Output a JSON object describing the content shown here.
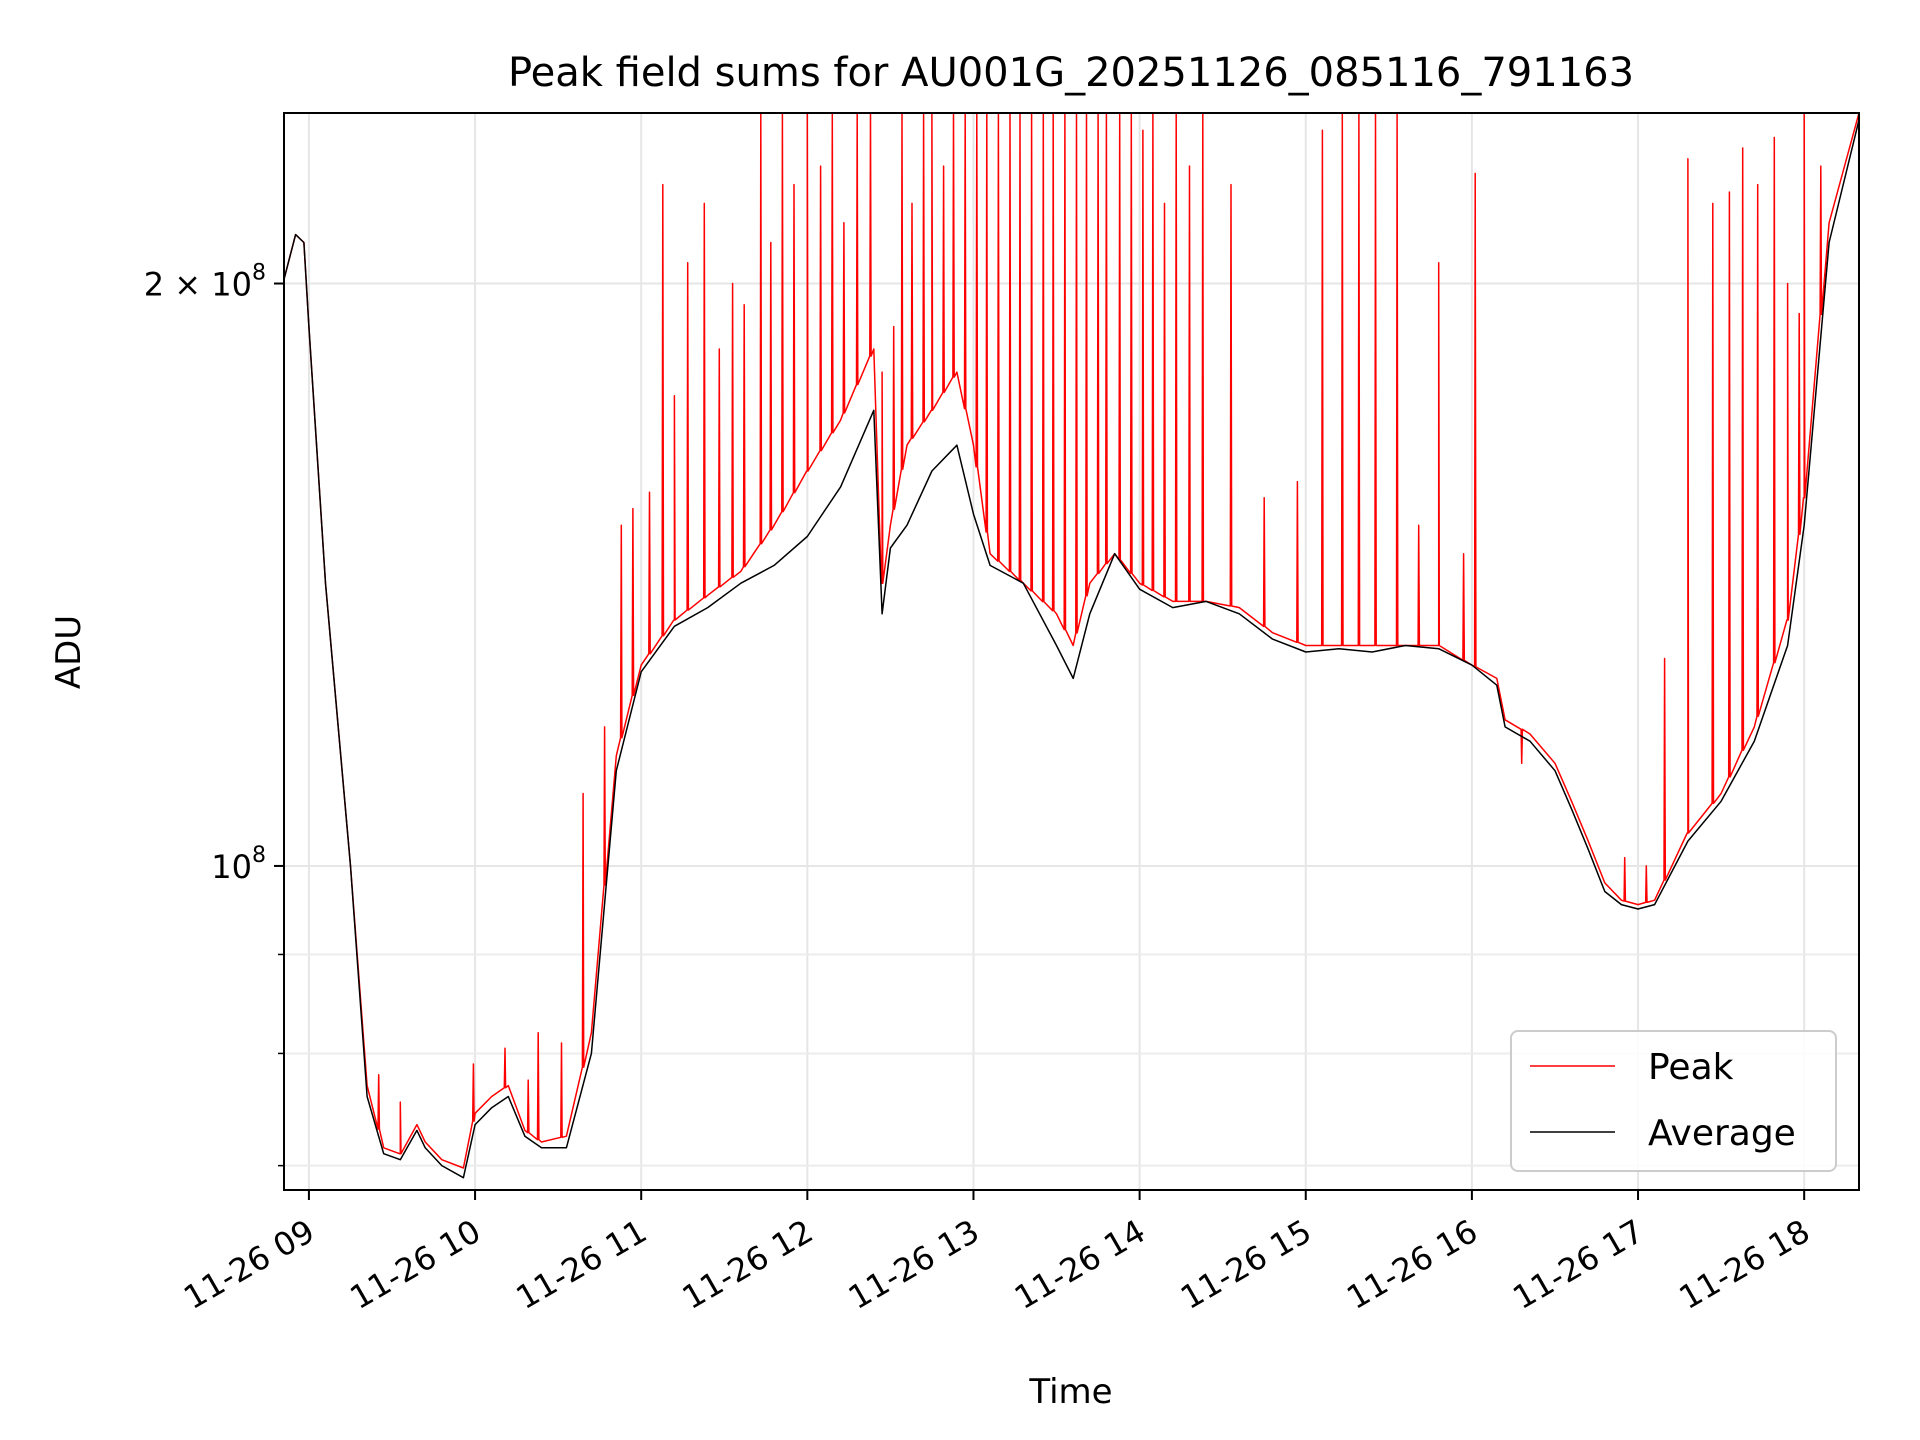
{
  "chart_data": {
    "type": "line",
    "title": "Peak field sums for AU001G_20251126_085116_791163",
    "xlabel": "Time",
    "ylabel": "ADU",
    "yscale": "log",
    "xlim": [
      8.85,
      18.33
    ],
    "ylim": [
      68000000,
      245000000
    ],
    "grid": true,
    "legend_position": "lower-right",
    "x_ticks": [
      {
        "value": 9,
        "label": "11-26 09"
      },
      {
        "value": 10,
        "label": "11-26 10"
      },
      {
        "value": 11,
        "label": "11-26 11"
      },
      {
        "value": 12,
        "label": "11-26 12"
      },
      {
        "value": 13,
        "label": "11-26 13"
      },
      {
        "value": 14,
        "label": "11-26 14"
      },
      {
        "value": 15,
        "label": "11-26 15"
      },
      {
        "value": 16,
        "label": "11-26 16"
      },
      {
        "value": 17,
        "label": "11-26 17"
      },
      {
        "value": 18,
        "label": "11-26 18"
      }
    ],
    "y_ticks": [
      {
        "value": 100000000,
        "base": "10",
        "exp": "8",
        "label": "10^8"
      },
      {
        "value": 200000000,
        "mant": "2",
        "base": "10",
        "exp": "8",
        "label": "2 × 10^8"
      }
    ],
    "y_minor_ticks": [
      70000000,
      80000000,
      90000000
    ],
    "series": [
      {
        "name": "Peak",
        "color": "#ff0000",
        "x": [
          8.85,
          8.92,
          8.97,
          9.0,
          9.1,
          9.25,
          9.35,
          9.45,
          9.55,
          9.65,
          9.7,
          9.8,
          9.93,
          10.0,
          10.1,
          10.2,
          10.3,
          10.4,
          10.55,
          10.7,
          10.85,
          11.0,
          11.2,
          11.4,
          11.6,
          11.8,
          12.0,
          12.2,
          12.4,
          12.45,
          12.5,
          12.6,
          12.75,
          12.9,
          13.0,
          13.1,
          13.3,
          13.5,
          13.6,
          13.7,
          13.85,
          14.0,
          14.2,
          14.4,
          14.6,
          14.8,
          15.0,
          15.2,
          15.4,
          15.6,
          15.8,
          16.0,
          16.15,
          16.2,
          16.35,
          16.5,
          16.6,
          16.7,
          16.8,
          16.9,
          17.0,
          17.1,
          17.3,
          17.5,
          17.7,
          17.9,
          18.0,
          18.15,
          18.33
        ],
        "y": [
          201000000,
          212000000,
          210000000,
          190000000,
          140000000,
          100000000,
          77000000,
          71500000,
          71000000,
          73500000,
          72000000,
          70500000,
          69800000,
          74500000,
          76000000,
          77000000,
          73000000,
          72000000,
          72500000,
          82000000,
          114000000,
          127000000,
          134000000,
          138000000,
          142000000,
          150000000,
          160000000,
          170000000,
          185000000,
          140000000,
          150000000,
          165000000,
          172000000,
          180000000,
          165000000,
          145000000,
          140000000,
          135000000,
          130000000,
          140000000,
          145000000,
          140000000,
          137000000,
          137000000,
          136000000,
          132000000,
          130000000,
          130000000,
          130000000,
          130000000,
          130000000,
          127000000,
          125000000,
          119000000,
          117000000,
          113000000,
          108000000,
          103000000,
          98000000,
          96000000,
          95500000,
          96000000,
          104000000,
          109000000,
          118000000,
          134000000,
          155000000,
          215000000,
          245000000
        ],
        "spikes": [
          [
            9.42,
            78000000
          ],
          [
            9.55,
            75500000
          ],
          [
            9.99,
            79000000
          ],
          [
            10.18,
            80500000
          ],
          [
            10.32,
            77500000
          ],
          [
            10.38,
            82000000
          ],
          [
            10.52,
            81000000
          ],
          [
            10.65,
            109000000
          ],
          [
            10.78,
            118000000
          ],
          [
            10.88,
            150000000
          ],
          [
            10.95,
            153000000
          ],
          [
            11.05,
            156000000
          ],
          [
            11.13,
            225000000
          ],
          [
            11.2,
            175000000
          ],
          [
            11.28,
            205000000
          ],
          [
            11.38,
            220000000
          ],
          [
            11.47,
            185000000
          ],
          [
            11.55,
            200000000
          ],
          [
            11.62,
            195000000
          ],
          [
            11.72,
            245000000
          ],
          [
            11.78,
            210000000
          ],
          [
            11.85,
            245000000
          ],
          [
            11.92,
            225000000
          ],
          [
            12.0,
            245000000
          ],
          [
            12.08,
            230000000
          ],
          [
            12.15,
            245000000
          ],
          [
            12.22,
            215000000
          ],
          [
            12.3,
            245000000
          ],
          [
            12.38,
            245000000
          ],
          [
            12.45,
            180000000
          ],
          [
            12.52,
            190000000
          ],
          [
            12.57,
            245000000
          ],
          [
            12.63,
            220000000
          ],
          [
            12.7,
            245000000
          ],
          [
            12.75,
            245000000
          ],
          [
            12.82,
            230000000
          ],
          [
            12.88,
            245000000
          ],
          [
            12.95,
            245000000
          ],
          [
            13.02,
            245000000
          ],
          [
            13.08,
            245000000
          ],
          [
            13.15,
            245000000
          ],
          [
            13.22,
            245000000
          ],
          [
            13.28,
            245000000
          ],
          [
            13.35,
            245000000
          ],
          [
            13.42,
            245000000
          ],
          [
            13.48,
            245000000
          ],
          [
            13.55,
            245000000
          ],
          [
            13.62,
            245000000
          ],
          [
            13.68,
            245000000
          ],
          [
            13.75,
            245000000
          ],
          [
            13.8,
            245000000
          ],
          [
            13.88,
            245000000
          ],
          [
            13.95,
            245000000
          ],
          [
            14.02,
            240000000
          ],
          [
            14.08,
            245000000
          ],
          [
            14.15,
            220000000
          ],
          [
            14.22,
            245000000
          ],
          [
            14.3,
            230000000
          ],
          [
            14.38,
            245000000
          ],
          [
            14.55,
            225000000
          ],
          [
            14.75,
            155000000
          ],
          [
            14.95,
            158000000
          ],
          [
            15.1,
            240000000
          ],
          [
            15.22,
            245000000
          ],
          [
            15.32,
            245000000
          ],
          [
            15.42,
            245000000
          ],
          [
            15.55,
            245000000
          ],
          [
            15.68,
            150000000
          ],
          [
            15.8,
            205000000
          ],
          [
            15.95,
            145000000
          ],
          [
            16.02,
            228000000
          ],
          [
            16.3,
            113000000
          ],
          [
            16.92,
            101000000
          ],
          [
            17.05,
            100000000
          ],
          [
            17.16,
            128000000
          ],
          [
            17.3,
            232000000
          ],
          [
            17.45,
            220000000
          ],
          [
            17.55,
            223000000
          ],
          [
            17.63,
            235000000
          ],
          [
            17.72,
            225000000
          ],
          [
            17.82,
            238000000
          ],
          [
            17.9,
            200000000
          ],
          [
            17.97,
            193000000
          ],
          [
            18.0,
            245000000
          ],
          [
            18.1,
            230000000
          ]
        ]
      },
      {
        "name": "Average",
        "color": "#000000",
        "x": [
          8.85,
          8.92,
          8.97,
          9.0,
          9.1,
          9.25,
          9.35,
          9.45,
          9.55,
          9.65,
          9.7,
          9.8,
          9.93,
          10.0,
          10.1,
          10.2,
          10.3,
          10.4,
          10.55,
          10.7,
          10.85,
          11.0,
          11.2,
          11.4,
          11.6,
          11.8,
          12.0,
          12.2,
          12.4,
          12.45,
          12.5,
          12.6,
          12.75,
          12.9,
          13.0,
          13.1,
          13.3,
          13.5,
          13.6,
          13.7,
          13.85,
          14.0,
          14.2,
          14.4,
          14.6,
          14.8,
          15.0,
          15.2,
          15.4,
          15.6,
          15.8,
          16.0,
          16.15,
          16.2,
          16.35,
          16.5,
          16.6,
          16.7,
          16.8,
          16.9,
          17.0,
          17.1,
          17.3,
          17.5,
          17.7,
          17.9,
          18.0,
          18.15,
          18.33
        ],
        "y": [
          201000000,
          212000000,
          210000000,
          190000000,
          140000000,
          100000000,
          76000000,
          71000000,
          70500000,
          73000000,
          71500000,
          70000000,
          69000000,
          73500000,
          75000000,
          76000000,
          72500000,
          71500000,
          71500000,
          80000000,
          112000000,
          126000000,
          133000000,
          136000000,
          140000000,
          143000000,
          148000000,
          157000000,
          172000000,
          135000000,
          146000000,
          150000000,
          160000000,
          165000000,
          152000000,
          143000000,
          140000000,
          130000000,
          125000000,
          135000000,
          145000000,
          139000000,
          136000000,
          137000000,
          135000000,
          131000000,
          129000000,
          129500000,
          129000000,
          130000000,
          129500000,
          127000000,
          124000000,
          118000000,
          116000000,
          112000000,
          107000000,
          102000000,
          97000000,
          95500000,
          95000000,
          95500000,
          103000000,
          108000000,
          116000000,
          130000000,
          150000000,
          210000000,
          243000000
        ]
      }
    ]
  }
}
